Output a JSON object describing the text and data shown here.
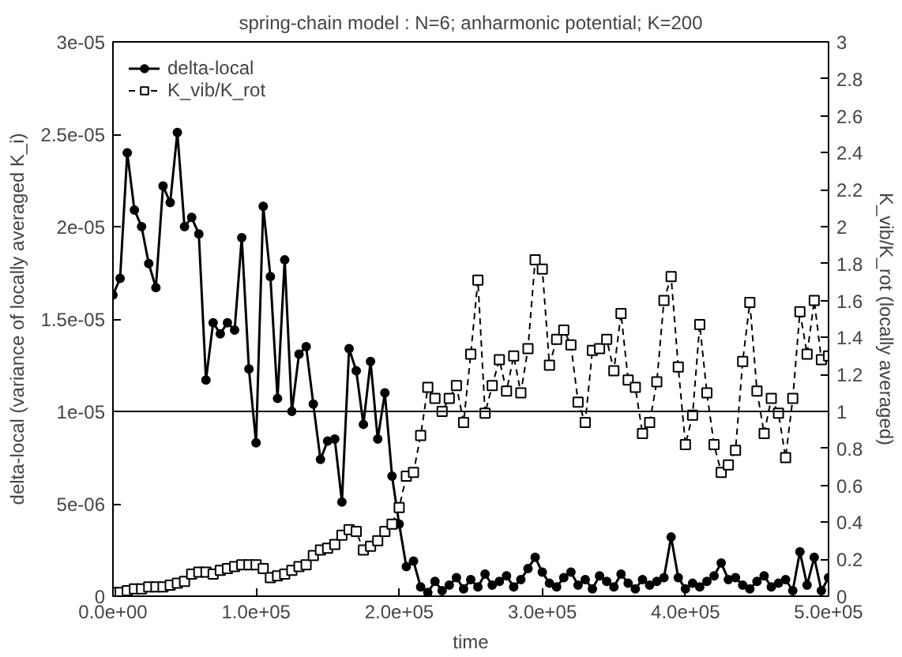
{
  "chart_data": {
    "type": "line",
    "title": "spring-chain model : N=6; anharmonic potential; K=200",
    "xlabel": "time",
    "ylabel": "delta-local (variance of locally averaged K_i)",
    "y2label": "K_vib/K_rot (locally averaged)",
    "x": [
      0,
      5000,
      10000,
      15000,
      20000,
      25000,
      30000,
      35000,
      40000,
      45000,
      50000,
      55000,
      60000,
      65000,
      70000,
      75000,
      80000,
      85000,
      90000,
      95000,
      100000,
      105000,
      110000,
      115000,
      120000,
      125000,
      130000,
      135000,
      140000,
      145000,
      150000,
      155000,
      160000,
      165000,
      170000,
      175000,
      180000,
      185000,
      190000,
      195000,
      200000,
      205000,
      210000,
      215000,
      220000,
      225000,
      230000,
      235000,
      240000,
      245000,
      250000,
      255000,
      260000,
      265000,
      270000,
      275000,
      280000,
      285000,
      290000,
      295000,
      300000,
      305000,
      310000,
      315000,
      320000,
      325000,
      330000,
      335000,
      340000,
      345000,
      350000,
      355000,
      360000,
      365000,
      370000,
      375000,
      380000,
      385000,
      390000,
      395000,
      400000,
      405000,
      410000,
      415000,
      420000,
      425000,
      430000,
      435000,
      440000,
      445000,
      450000,
      455000,
      460000,
      465000,
      470000,
      475000,
      480000,
      485000,
      490000,
      495000,
      500000
    ],
    "series": [
      {
        "name": "delta-local",
        "color": "#000000",
        "marker": "circle",
        "line_style": "solid",
        "values": [
          1.63e-05,
          1.72e-05,
          2.4e-05,
          2.09e-05,
          2e-05,
          1.8e-05,
          1.67e-05,
          2.22e-05,
          2.13e-05,
          2.51e-05,
          2e-05,
          2.05e-05,
          1.96e-05,
          1.17e-05,
          1.48e-05,
          1.42e-05,
          1.48e-05,
          1.44e-05,
          1.94e-05,
          1.23e-05,
          8.3e-06,
          2.11e-05,
          1.73e-05,
          1.07e-05,
          1.82e-05,
          1e-05,
          1.31e-05,
          1.35e-05,
          1.04e-05,
          7.4e-06,
          8.4e-06,
          8.5e-06,
          5.1e-06,
          1.34e-05,
          1.22e-05,
          9.3e-06,
          1.27e-05,
          8.5e-06,
          1.1e-05,
          6.5e-06,
          3.9e-06,
          1.6e-06,
          1.9e-06,
          5e-07,
          2e-07,
          8e-07,
          3e-07,
          6e-07,
          1e-06,
          4e-07,
          9e-07,
          5e-07,
          1.2e-06,
          6e-07,
          8e-07,
          1.1e-06,
          5e-07,
          9e-07,
          1.5e-06,
          2.1e-06,
          1.3e-06,
          7e-07,
          5e-07,
          1e-06,
          1.3e-06,
          6e-07,
          9e-07,
          4e-07,
          1.1e-06,
          8e-07,
          5e-07,
          1.2e-06,
          7e-07,
          4e-07,
          9e-07,
          6e-07,
          8e-07,
          1e-06,
          3.2e-06,
          1e-06,
          4e-07,
          7e-07,
          5e-07,
          8e-07,
          1.1e-06,
          1.8e-06,
          9e-07,
          1e-06,
          6e-07,
          4e-07,
          8e-07,
          1.1e-06,
          5e-07,
          7e-07,
          9e-07,
          3e-07,
          2.4e-06,
          6e-07,
          2.1e-06,
          3e-07,
          1e-06
        ]
      },
      {
        "name": "K_vib/K_rot",
        "color": "#000000",
        "marker": "square",
        "line_style": "dashed",
        "axis": "y2",
        "values": [
          0.02,
          0.02,
          0.03,
          0.04,
          0.04,
          0.05,
          0.05,
          0.05,
          0.06,
          0.07,
          0.08,
          0.12,
          0.13,
          0.13,
          0.12,
          0.14,
          0.15,
          0.16,
          0.17,
          0.17,
          0.17,
          0.15,
          0.1,
          0.11,
          0.12,
          0.14,
          0.16,
          0.17,
          0.22,
          0.25,
          0.26,
          0.28,
          0.33,
          0.36,
          0.35,
          0.25,
          0.27,
          0.3,
          0.35,
          0.39,
          0.48,
          0.65,
          0.67,
          0.87,
          1.13,
          1.07,
          1.0,
          1.07,
          1.14,
          0.94,
          1.31,
          1.71,
          0.99,
          1.14,
          1.28,
          1.11,
          1.3,
          1.1,
          1.34,
          1.82,
          1.77,
          1.25,
          1.39,
          1.44,
          1.36,
          1.05,
          0.94,
          1.33,
          1.34,
          1.39,
          1.22,
          1.53,
          1.17,
          1.13,
          0.88,
          0.94,
          1.16,
          1.6,
          1.73,
          1.24,
          0.82,
          0.98,
          1.47,
          1.1,
          0.82,
          0.67,
          0.71,
          0.79,
          1.27,
          1.59,
          1.11,
          0.88,
          1.07,
          0.99,
          0.75,
          1.07,
          1.54,
          1.31,
          1.6,
          1.28,
          1.3
        ]
      }
    ],
    "xlim": [
      0,
      500000
    ],
    "xticks": [
      {
        "value": 0,
        "label": "0.0e+00"
      },
      {
        "value": 100000,
        "label": "1.0e+05"
      },
      {
        "value": 200000,
        "label": "2.0e+05"
      },
      {
        "value": 300000,
        "label": "3.0e+05"
      },
      {
        "value": 400000,
        "label": "4.0e+05"
      },
      {
        "value": 500000,
        "label": "5.0e+05"
      }
    ],
    "ylim": [
      0,
      3e-05
    ],
    "yticks": [
      0,
      {
        "value": 5e-06,
        "label": "5e-06"
      },
      {
        "value": 1e-05,
        "label": "1e-05"
      },
      {
        "value": 1.5e-05,
        "label": "1.5e-05"
      },
      {
        "value": 2e-05,
        "label": "2e-05"
      },
      {
        "value": 2.5e-05,
        "label": "2.5e-05"
      },
      {
        "value": 3e-05,
        "label": "3e-05"
      }
    ],
    "y2lim": [
      0,
      3
    ],
    "y2ticks": [
      0,
      0.2,
      0.4,
      0.6,
      0.8,
      1,
      1.2,
      1.4,
      1.6,
      1.8,
      2,
      2.2,
      2.4,
      2.6,
      2.8,
      3
    ],
    "ref_lines": [
      {
        "axis": "y",
        "value": 1e-05,
        "color": "#000000"
      }
    ],
    "grid": false,
    "legend": "top left"
  }
}
